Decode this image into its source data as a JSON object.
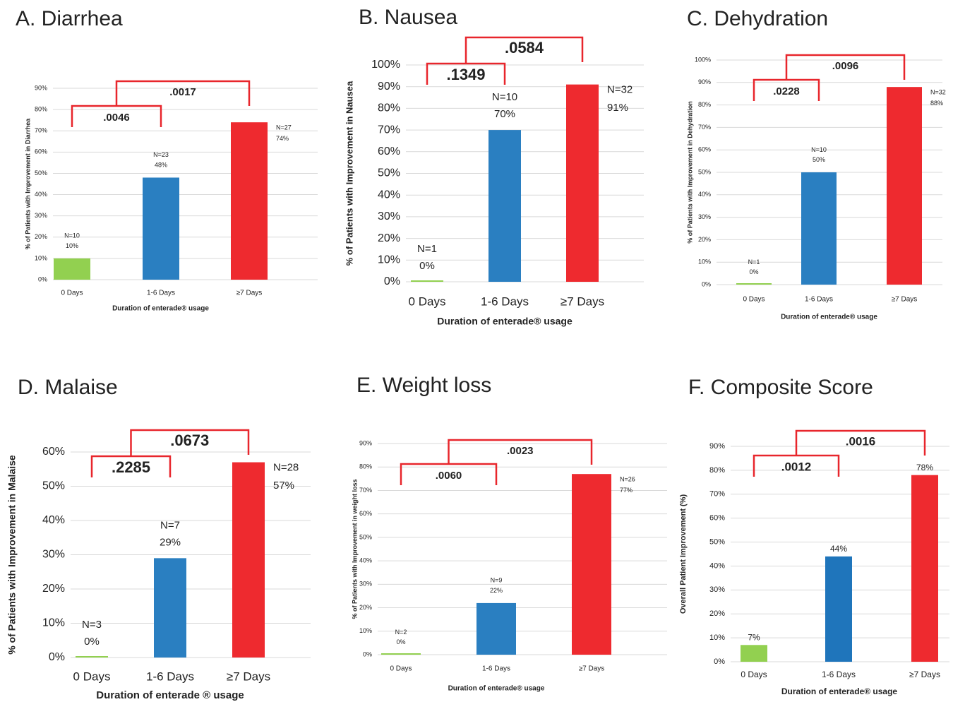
{
  "chart_data": [
    {
      "type": "bar",
      "title": "A. Diarrhea",
      "ylabel": "% of Patients with Improvement in Diarrhea",
      "xlabel": "Duration of enterade® usage",
      "categories": [
        "0 Days",
        "1-6 Days",
        "≥7 Days"
      ],
      "values": [
        10,
        48,
        74
      ],
      "value_labels": [
        "10%",
        "48%",
        "74%"
      ],
      "n_labels": [
        "N=10",
        "N=23",
        "N=27"
      ],
      "colors": [
        "#92d050",
        "#2a7fc1",
        "#ee2a2f"
      ],
      "ylim": [
        0,
        90
      ],
      "yticks": [
        {
          "value": 0,
          "label": "0%"
        },
        {
          "value": 10,
          "label": "10%"
        },
        {
          "value": 20,
          "label": "20%"
        },
        {
          "value": 30,
          "label": "30%"
        },
        {
          "value": 40,
          "label": "40%"
        },
        {
          "value": 50,
          "label": "50%"
        },
        {
          "value": 60,
          "label": "60%"
        },
        {
          "value": 70,
          "label": "70%"
        },
        {
          "value": 80,
          "label": "80%"
        },
        {
          "value": 90,
          "label": "90%"
        }
      ],
      "p_values": [
        ".0046",
        ".0017"
      ],
      "grid": true
    },
    {
      "type": "bar",
      "title": "B. Nausea",
      "ylabel": "% of Patients with Improvement in Nausea",
      "xlabel": "Duration of enterade® usage",
      "categories": [
        "0 Days",
        "1-6 Days",
        "≥7 Days"
      ],
      "values": [
        0,
        70,
        91
      ],
      "value_labels": [
        "0%",
        "70%",
        "91%"
      ],
      "n_labels": [
        "N=1",
        "N=10",
        "N=32"
      ],
      "colors": [
        "#92d050",
        "#2a7fc1",
        "#ee2a2f"
      ],
      "ylim": [
        0,
        100
      ],
      "yticks": [
        {
          "value": 0,
          "label": "0%"
        },
        {
          "value": 10,
          "label": "10%"
        },
        {
          "value": 20,
          "label": "20%"
        },
        {
          "value": 30,
          "label": "30%"
        },
        {
          "value": 40,
          "label": "40%"
        },
        {
          "value": 50,
          "label": "50%"
        },
        {
          "value": 60,
          "label": "60%"
        },
        {
          "value": 70,
          "label": "70%"
        },
        {
          "value": 80,
          "label": "80%"
        },
        {
          "value": 90,
          "label": "90%"
        },
        {
          "value": 100,
          "label": "100%"
        }
      ],
      "p_values": [
        ".1349",
        ".0584"
      ],
      "grid": true
    },
    {
      "type": "bar",
      "title": "C. Dehydration",
      "ylabel": "% of Patients with Improvement in Dehydration",
      "xlabel": "Duration of enterade® usage",
      "categories": [
        "0 Days",
        "1-6 Days",
        "≥7 Days"
      ],
      "values": [
        0,
        50,
        88
      ],
      "value_labels": [
        "0%",
        "50%",
        "88%"
      ],
      "n_labels": [
        "N=1",
        "N=10",
        "N=32"
      ],
      "colors": [
        "#92d050",
        "#2a7fc1",
        "#ee2a2f"
      ],
      "ylim": [
        0,
        100
      ],
      "yticks": [
        {
          "value": 0,
          "label": "0%"
        },
        {
          "value": 10,
          "label": "10%"
        },
        {
          "value": 20,
          "label": "20%"
        },
        {
          "value": 30,
          "label": "30%"
        },
        {
          "value": 40,
          "label": "40%"
        },
        {
          "value": 50,
          "label": "50%"
        },
        {
          "value": 60,
          "label": "60%"
        },
        {
          "value": 70,
          "label": "70%"
        },
        {
          "value": 80,
          "label": "80%"
        },
        {
          "value": 90,
          "label": "90%"
        },
        {
          "value": 100,
          "label": "100%"
        }
      ],
      "p_values": [
        ".0228",
        ".0096"
      ],
      "grid": true
    },
    {
      "type": "bar",
      "title": "D. Malaise",
      "ylabel": "% of Patients with Improvement in Malaise",
      "xlabel": "Duration of enterade ® usage",
      "categories": [
        "0 Days",
        "1-6 Days",
        "≥7 Days"
      ],
      "values": [
        0,
        29,
        57
      ],
      "value_labels": [
        "0%",
        "29%",
        "57%"
      ],
      "n_labels": [
        "N=3",
        "N=7",
        "N=28"
      ],
      "colors": [
        "#92d050",
        "#2a7fc1",
        "#ee2a2f"
      ],
      "ylim": [
        0,
        60
      ],
      "yticks": [
        {
          "value": 0,
          "label": "0%"
        },
        {
          "value": 10,
          "label": "10%"
        },
        {
          "value": 20,
          "label": "20%"
        },
        {
          "value": 30,
          "label": "30%"
        },
        {
          "value": 40,
          "label": "40%"
        },
        {
          "value": 50,
          "label": "50%"
        },
        {
          "value": 60,
          "label": "60%"
        }
      ],
      "p_values": [
        ".2285",
        ".0673"
      ],
      "grid": true
    },
    {
      "type": "bar",
      "title": "E. Weight loss",
      "ylabel": "% of Patients with Improvement in weight loss",
      "xlabel": "Duration of enterade® usage",
      "categories": [
        "0 Days",
        "1-6 Days",
        "≥7 Days"
      ],
      "values": [
        0,
        22,
        77
      ],
      "value_labels": [
        "0%",
        "22%",
        "77%"
      ],
      "n_labels": [
        "N=2",
        "N=9",
        "N=26"
      ],
      "colors": [
        "#92d050",
        "#2a7fc1",
        "#ee2a2f"
      ],
      "ylim": [
        0,
        90
      ],
      "yticks": [
        {
          "value": 0,
          "label": "0%"
        },
        {
          "value": 10,
          "label": "10%"
        },
        {
          "value": 20,
          "label": "20%"
        },
        {
          "value": 30,
          "label": "30%"
        },
        {
          "value": 40,
          "label": "40%"
        },
        {
          "value": 50,
          "label": "50%"
        },
        {
          "value": 60,
          "label": "60%"
        },
        {
          "value": 70,
          "label": "70%"
        },
        {
          "value": 80,
          "label": "80%"
        },
        {
          "value": 90,
          "label": "90%"
        }
      ],
      "p_values": [
        ".0060",
        ".0023"
      ],
      "grid": true
    },
    {
      "type": "bar",
      "title": "F. Composite Score",
      "ylabel": "Overall Patient Improvement (%)",
      "xlabel": "Duration of enterade® usage",
      "categories": [
        "0 Days",
        "1-6 Days",
        "≥7 Days"
      ],
      "values": [
        7,
        44,
        78
      ],
      "value_labels": [
        "7%",
        "44%",
        "78%"
      ],
      "colors": [
        "#92d050",
        "#1f75bb",
        "#ee2a2f"
      ],
      "ylim": [
        0,
        90
      ],
      "yticks": [
        {
          "value": 0,
          "label": "0%"
        },
        {
          "value": 10,
          "label": "10%"
        },
        {
          "value": 20,
          "label": "20%"
        },
        {
          "value": 30,
          "label": "30%"
        },
        {
          "value": 40,
          "label": "40%"
        },
        {
          "value": 50,
          "label": "50%"
        },
        {
          "value": 60,
          "label": "60%"
        },
        {
          "value": 70,
          "label": "70%"
        },
        {
          "value": 80,
          "label": "80%"
        },
        {
          "value": 90,
          "label": "90%"
        }
      ],
      "p_values": [
        ".0012",
        ".0016"
      ],
      "grid": true
    }
  ]
}
